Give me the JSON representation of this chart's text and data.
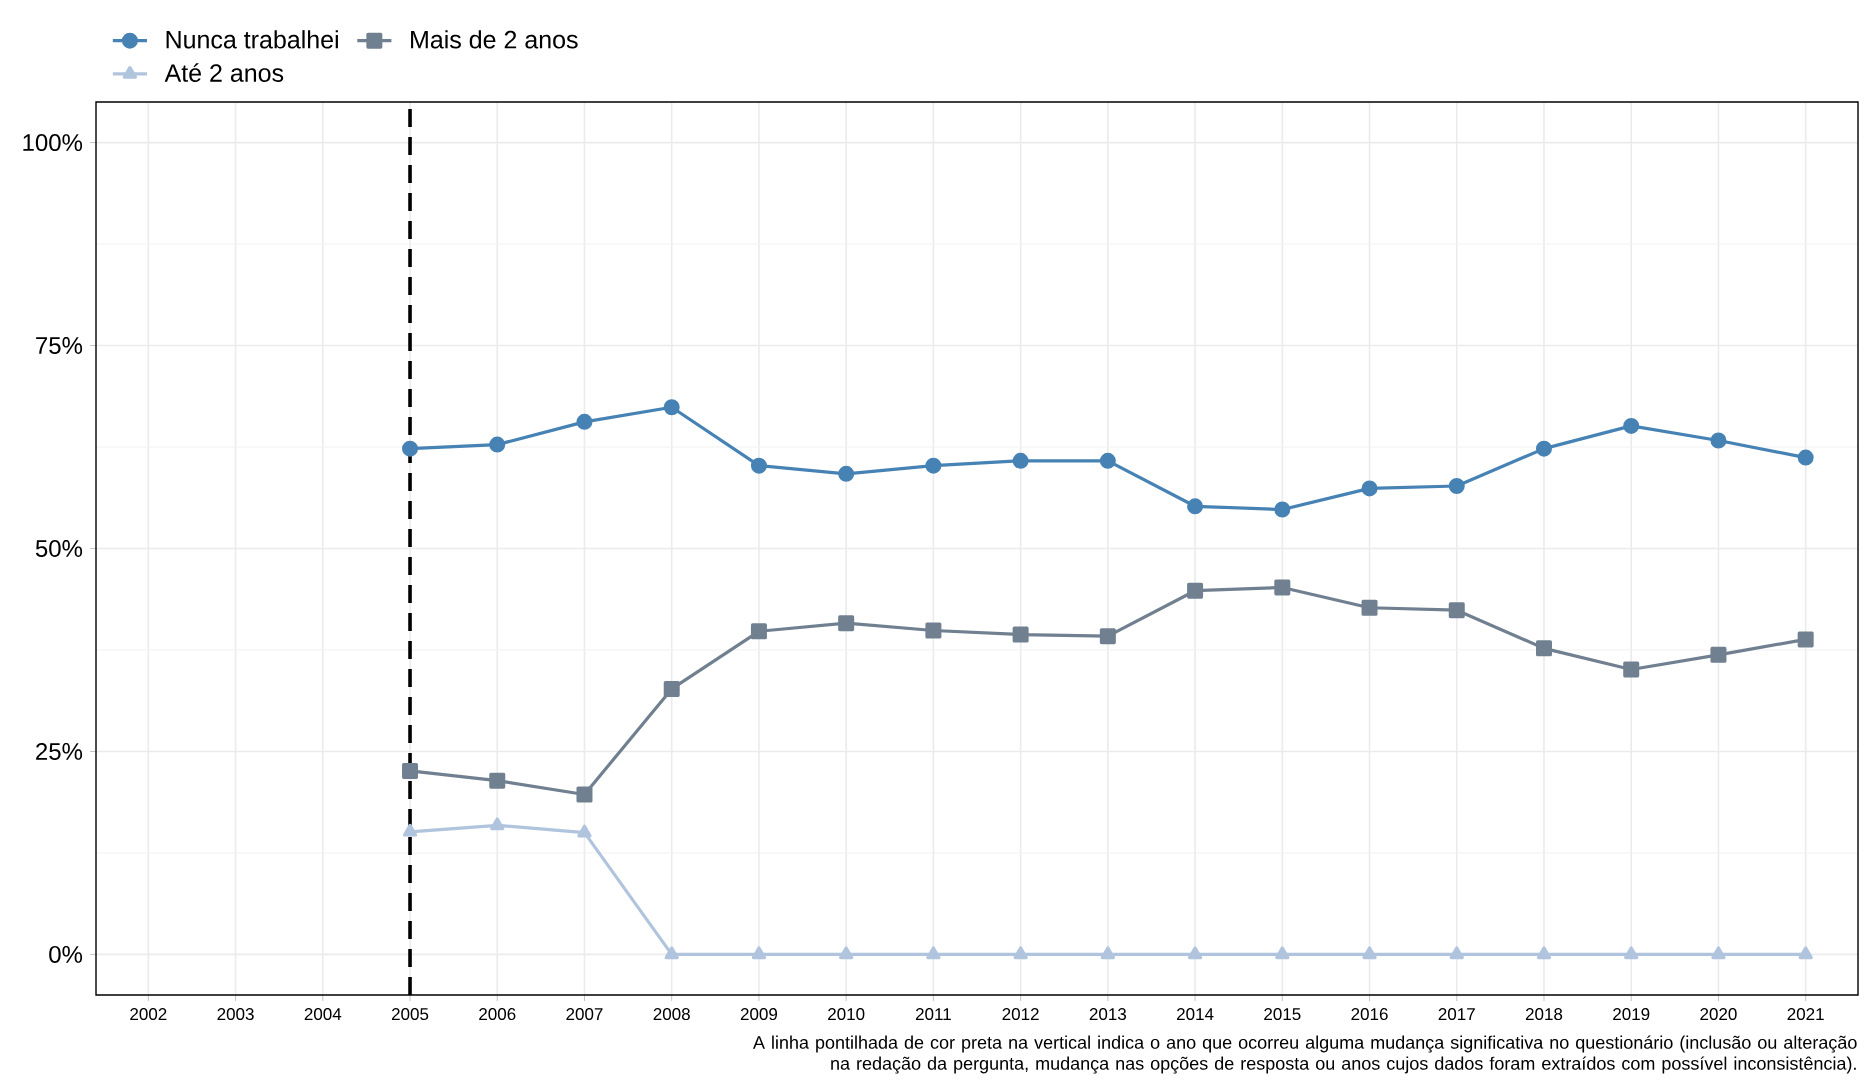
{
  "chart_data": {
    "type": "line",
    "x": [
      2005,
      2006,
      2007,
      2008,
      2009,
      2010,
      2011,
      2012,
      2013,
      2014,
      2015,
      2016,
      2017,
      2018,
      2019,
      2020,
      2021
    ],
    "series": [
      {
        "name": "Nunca trabalhei",
        "color": "#4682b4",
        "marker": "circle",
        "values": [
          62.3,
          62.8,
          65.6,
          67.4,
          60.2,
          59.2,
          60.2,
          60.8,
          60.8,
          55.2,
          54.8,
          57.4,
          57.7,
          62.3,
          65.1,
          63.3,
          61.2
        ]
      },
      {
        "name": "Mais de 2 anos",
        "color": "#708090",
        "marker": "square",
        "values": [
          22.6,
          21.4,
          19.7,
          32.7,
          39.8,
          40.8,
          39.9,
          39.4,
          39.2,
          44.8,
          45.2,
          42.7,
          42.4,
          37.7,
          35.1,
          36.9,
          38.8
        ]
      },
      {
        "name": "Até 2 anos",
        "color": "#b0c4de",
        "marker": "triangle",
        "values": [
          15.1,
          15.9,
          15.0,
          0,
          0,
          0,
          0,
          0,
          0,
          0,
          0,
          0,
          0,
          0,
          0,
          0,
          0
        ]
      }
    ],
    "xlim": [
      2001.4,
      2021.6
    ],
    "xticks": [
      2002,
      2003,
      2004,
      2005,
      2006,
      2007,
      2008,
      2009,
      2010,
      2011,
      2012,
      2013,
      2014,
      2015,
      2016,
      2017,
      2018,
      2019,
      2020,
      2021
    ],
    "ylim": [
      -5,
      105
    ],
    "yticks": [
      {
        "value": 0,
        "label": "0%"
      },
      {
        "value": 25,
        "label": "25%"
      },
      {
        "value": 50,
        "label": "50%"
      },
      {
        "value": 75,
        "label": "75%"
      },
      {
        "value": 100,
        "label": "100%"
      }
    ],
    "grid": true,
    "legend": "top left",
    "line_style": "solid",
    "ref_lines": [
      {
        "axis": "x",
        "value": 2005,
        "color": "#000000",
        "line_style": "dashed"
      }
    ],
    "annotations": [
      "A linha pontilhada de cor preta na vertical indica o ano que ocorreu alguma mudança significativa no questionário (inclusão ou alteração na redação da pergunta, mudança nas opções de resposta ou anos cujos dados foram extraídos com possível inconsistência)."
    ]
  }
}
